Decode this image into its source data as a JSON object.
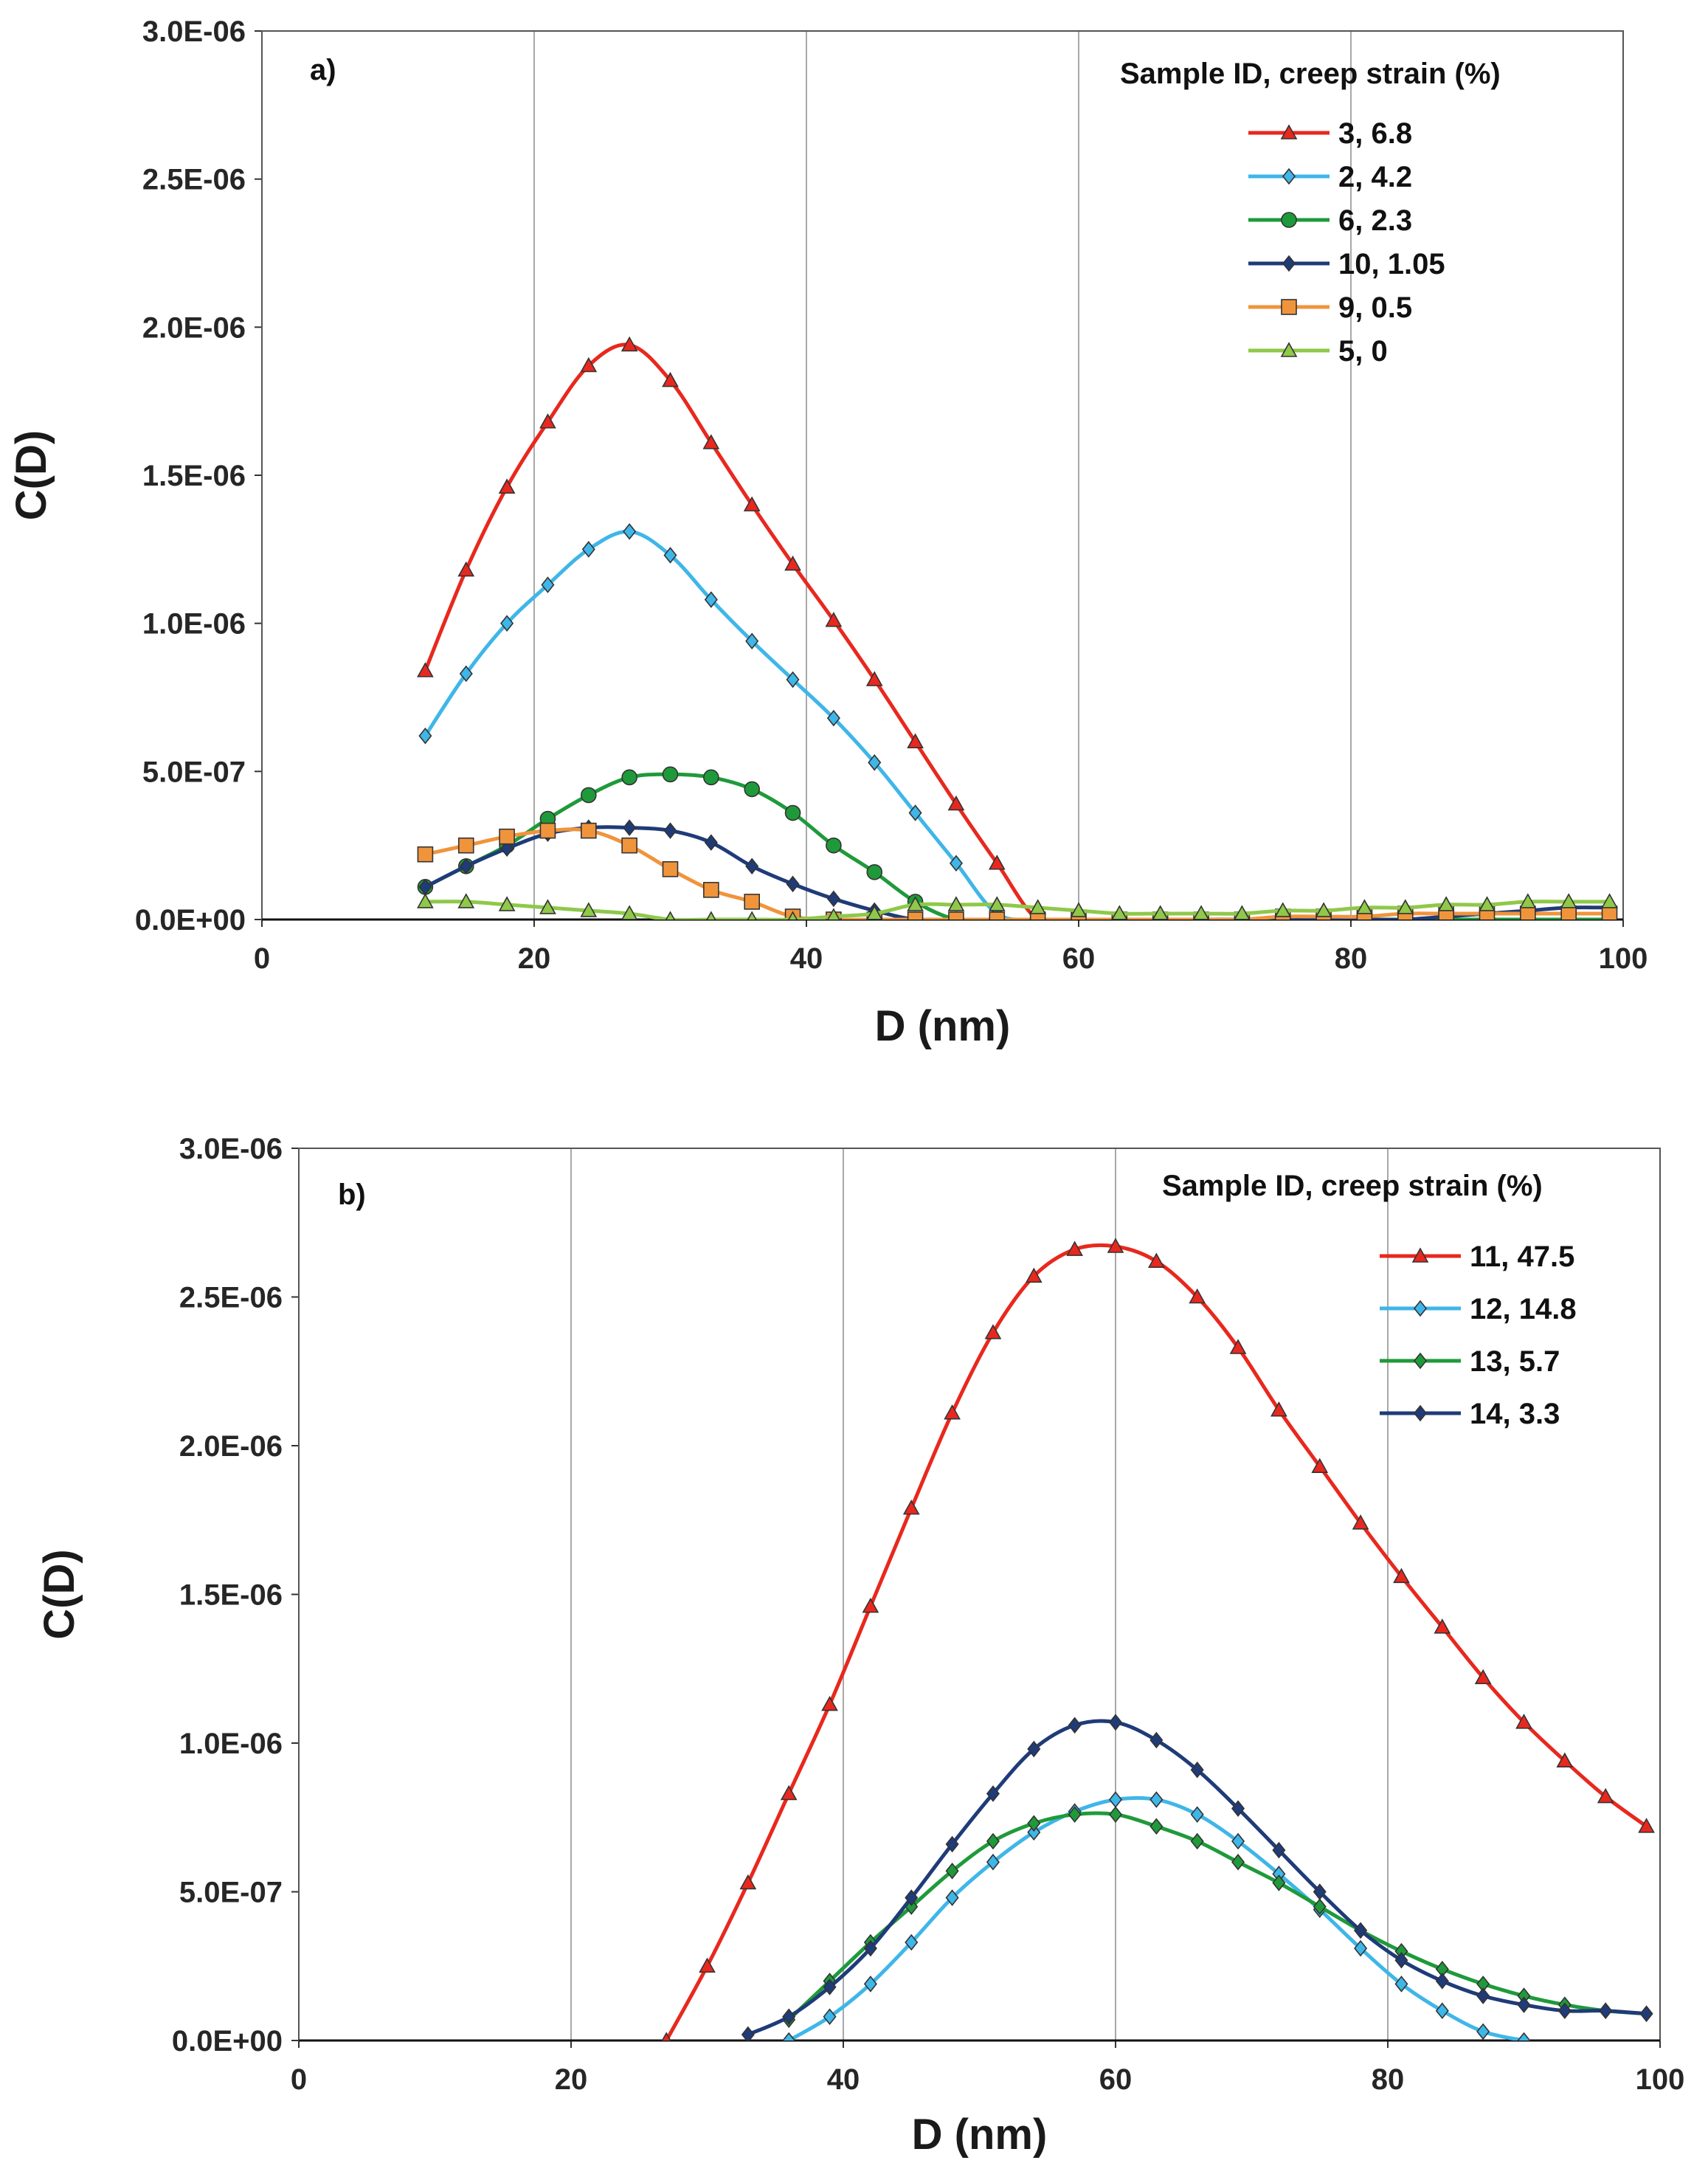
{
  "chart_data": [
    {
      "type": "line",
      "panel_label": "a)",
      "xlabel": "D (nm)",
      "ylabel": "C(D)",
      "xlim": [
        0,
        100
      ],
      "ylim": [
        0,
        3e-06
      ],
      "x_ticks": [
        "0",
        "20",
        "40",
        "60",
        "80",
        "100"
      ],
      "y_ticks": [
        "0.0E+00",
        "5.0E-07",
        "1.0E-06",
        "1.5E-06",
        "2.0E-06",
        "2.5E-06",
        "3.0E-06"
      ],
      "grid": true,
      "legend_title": "Sample ID, creep strain (%)",
      "legend_position": "top-right",
      "series": [
        {
          "name": "3, 6.8",
          "color": "#e8281e",
          "marker": "triangle",
          "x": [
            12,
            15,
            18,
            21,
            24,
            27,
            30,
            33,
            36,
            39,
            42,
            45,
            48,
            51,
            54,
            57,
            60,
            63,
            66,
            69,
            72,
            75,
            78,
            81,
            84,
            87,
            90,
            93,
            96,
            99
          ],
          "y": [
            8.4e-07,
            1.18e-06,
            1.46e-06,
            1.68e-06,
            1.87e-06,
            1.94e-06,
            1.82e-06,
            1.61e-06,
            1.4e-06,
            1.2e-06,
            1.01e-06,
            8.1e-07,
            6e-07,
            3.9e-07,
            1.9e-07,
            0.0,
            0.0,
            0.0,
            0.0,
            0.0,
            0.0,
            0.0,
            0.0,
            0.0,
            0.0,
            0.0,
            0.0,
            0.0,
            0.0,
            0.0
          ]
        },
        {
          "name": "2, 4.2",
          "color": "#3fb6e8",
          "marker": "diamond",
          "x": [
            12,
            15,
            18,
            21,
            24,
            27,
            30,
            33,
            36,
            39,
            42,
            45,
            48,
            51,
            54,
            57,
            60,
            63,
            66,
            69,
            72,
            75,
            78,
            81,
            84,
            87,
            90,
            93,
            96,
            99
          ],
          "y": [
            6.2e-07,
            8.3e-07,
            1e-06,
            1.13e-06,
            1.25e-06,
            1.31e-06,
            1.23e-06,
            1.08e-06,
            9.4e-07,
            8.1e-07,
            6.8e-07,
            5.3e-07,
            3.6e-07,
            1.9e-07,
            2e-08,
            0.0,
            0.0,
            0.0,
            0.0,
            0.0,
            0.0,
            0.0,
            0.0,
            0.0,
            0.0,
            0.0,
            0.0,
            0.0,
            0.0,
            0.0
          ]
        },
        {
          "name": "6, 2.3",
          "color": "#1f9a3a",
          "marker": "circle",
          "x": [
            12,
            15,
            18,
            21,
            24,
            27,
            30,
            33,
            36,
            39,
            42,
            45,
            48,
            51,
            54,
            57,
            60,
            63,
            66,
            69,
            72,
            75,
            78,
            81,
            84,
            87,
            90,
            93,
            96,
            99
          ],
          "y": [
            1.1e-07,
            1.8e-07,
            2.5e-07,
            3.4e-07,
            4.2e-07,
            4.8e-07,
            4.9e-07,
            4.8e-07,
            4.4e-07,
            3.6e-07,
            2.5e-07,
            1.6e-07,
            6e-08,
            0.0,
            0.0,
            0.0,
            0.0,
            0.0,
            0.0,
            0.0,
            0.0,
            0.0,
            0.0,
            0.0,
            0.0,
            0.0,
            0.0,
            0.0,
            0.0,
            0.0
          ]
        },
        {
          "name": "10, 1.05",
          "color": "#1f3b78",
          "marker": "diamond",
          "x": [
            12,
            15,
            18,
            21,
            24,
            27,
            30,
            33,
            36,
            39,
            42,
            45,
            48,
            51,
            54,
            57,
            60,
            63,
            66,
            69,
            72,
            75,
            78,
            81,
            84,
            87,
            90,
            93,
            96,
            99
          ],
          "y": [
            1.1e-07,
            1.8e-07,
            2.4e-07,
            2.9e-07,
            3.1e-07,
            3.1e-07,
            3e-07,
            2.6e-07,
            1.8e-07,
            1.2e-07,
            7e-08,
            3e-08,
            0.0,
            0.0,
            0.0,
            0.0,
            0.0,
            0.0,
            0.0,
            0.0,
            0.0,
            0.0,
            0.0,
            0.0,
            0.0,
            1e-08,
            2e-08,
            3e-08,
            4e-08,
            4e-08
          ]
        },
        {
          "name": "9, 0.5",
          "color": "#f0943c",
          "marker": "square",
          "x": [
            12,
            15,
            18,
            21,
            24,
            27,
            30,
            33,
            36,
            39,
            42,
            45,
            48,
            51,
            54,
            57,
            60,
            63,
            66,
            69,
            72,
            75,
            78,
            81,
            84,
            87,
            90,
            93,
            96,
            99
          ],
          "y": [
            2.2e-07,
            2.5e-07,
            2.8e-07,
            3e-07,
            3e-07,
            2.5e-07,
            1.7e-07,
            1e-07,
            6e-08,
            1e-08,
            0.0,
            0.0,
            0.0,
            0.0,
            0.0,
            0.0,
            0.0,
            0.0,
            0.0,
            0.0,
            0.0,
            1e-08,
            1e-08,
            1e-08,
            2e-08,
            2e-08,
            2e-08,
            2e-08,
            2e-08,
            2e-08
          ]
        },
        {
          "name": "5, 0",
          "color": "#8fc84a",
          "marker": "triangle",
          "x": [
            12,
            15,
            18,
            21,
            24,
            27,
            30,
            33,
            36,
            39,
            42,
            45,
            48,
            51,
            54,
            57,
            60,
            63,
            66,
            69,
            72,
            75,
            78,
            81,
            84,
            87,
            90,
            93,
            96,
            99
          ],
          "y": [
            6e-08,
            6e-08,
            5e-08,
            4e-08,
            3e-08,
            2e-08,
            0.0,
            0.0,
            0.0,
            0.0,
            1e-08,
            2e-08,
            5e-08,
            5e-08,
            5e-08,
            4e-08,
            3e-08,
            2e-08,
            2e-08,
            2e-08,
            2e-08,
            3e-08,
            3e-08,
            4e-08,
            4e-08,
            5e-08,
            5e-08,
            6e-08,
            6e-08,
            6e-08
          ]
        }
      ]
    },
    {
      "type": "line",
      "panel_label": "b)",
      "xlabel": "D (nm)",
      "ylabel": "C(D)",
      "xlim": [
        0,
        100
      ],
      "ylim": [
        0,
        3e-06
      ],
      "x_ticks": [
        "0",
        "20",
        "40",
        "60",
        "80",
        "100"
      ],
      "y_ticks": [
        "0.0E+00",
        "5.0E-07",
        "1.0E-06",
        "1.5E-06",
        "2.0E-06",
        "2.5E-06",
        "3.0E-06"
      ],
      "grid": true,
      "legend_title": "Sample ID, creep strain (%)",
      "legend_position": "top-right",
      "series": [
        {
          "name": "11, 47.5",
          "color": "#e8281e",
          "marker": "triangle",
          "x": [
            27,
            30,
            33,
            36,
            39,
            42,
            45,
            48,
            51,
            54,
            57,
            60,
            63,
            66,
            69,
            72,
            75,
            78,
            81,
            84,
            87,
            90,
            93,
            96,
            99
          ],
          "y": [
            0.0,
            2.5e-07,
            5.3e-07,
            8.3e-07,
            1.13e-06,
            1.46e-06,
            1.79e-06,
            2.11e-06,
            2.38e-06,
            2.57e-06,
            2.66e-06,
            2.67e-06,
            2.62e-06,
            2.5e-06,
            2.33e-06,
            2.12e-06,
            1.93e-06,
            1.74e-06,
            1.56e-06,
            1.39e-06,
            1.22e-06,
            1.07e-06,
            9.4e-07,
            8.2e-07,
            7.2e-07
          ]
        },
        {
          "name": "12, 14.8",
          "color": "#3fb6e8",
          "marker": "diamond",
          "x": [
            36,
            39,
            42,
            45,
            48,
            51,
            54,
            57,
            60,
            63,
            66,
            69,
            72,
            75,
            78,
            81,
            84,
            87,
            90
          ],
          "y": [
            0.0,
            8e-08,
            1.9e-07,
            3.3e-07,
            4.8e-07,
            6e-07,
            7e-07,
            7.7e-07,
            8.1e-07,
            8.1e-07,
            7.6e-07,
            6.7e-07,
            5.6e-07,
            4.4e-07,
            3.1e-07,
            1.9e-07,
            1e-07,
            3e-08,
            0.0
          ]
        },
        {
          "name": "13, 5.7",
          "color": "#1f9a3a",
          "marker": "diamond",
          "x": [
            36,
            39,
            42,
            45,
            48,
            51,
            54,
            57,
            60,
            63,
            66,
            69,
            72,
            75,
            78,
            81,
            84,
            87,
            90,
            93,
            96,
            99
          ],
          "y": [
            7e-08,
            2e-07,
            3.3e-07,
            4.5e-07,
            5.7e-07,
            6.7e-07,
            7.3e-07,
            7.6e-07,
            7.6e-07,
            7.2e-07,
            6.7e-07,
            6e-07,
            5.3e-07,
            4.5e-07,
            3.7e-07,
            3e-07,
            2.4e-07,
            1.9e-07,
            1.5e-07,
            1.2e-07,
            1e-07,
            9e-08
          ]
        },
        {
          "name": "14, 3.3",
          "color": "#1f3b78",
          "marker": "diamond",
          "x": [
            33,
            36,
            39,
            42,
            45,
            48,
            51,
            54,
            57,
            60,
            63,
            66,
            69,
            72,
            75,
            78,
            81,
            84,
            87,
            90,
            93,
            96,
            99
          ],
          "y": [
            2e-08,
            8e-08,
            1.8e-07,
            3.1e-07,
            4.8e-07,
            6.6e-07,
            8.3e-07,
            9.8e-07,
            1.06e-06,
            1.07e-06,
            1.01e-06,
            9.1e-07,
            7.8e-07,
            6.4e-07,
            5e-07,
            3.7e-07,
            2.7e-07,
            2e-07,
            1.5e-07,
            1.2e-07,
            1e-07,
            1e-07,
            9e-08
          ]
        }
      ]
    }
  ]
}
